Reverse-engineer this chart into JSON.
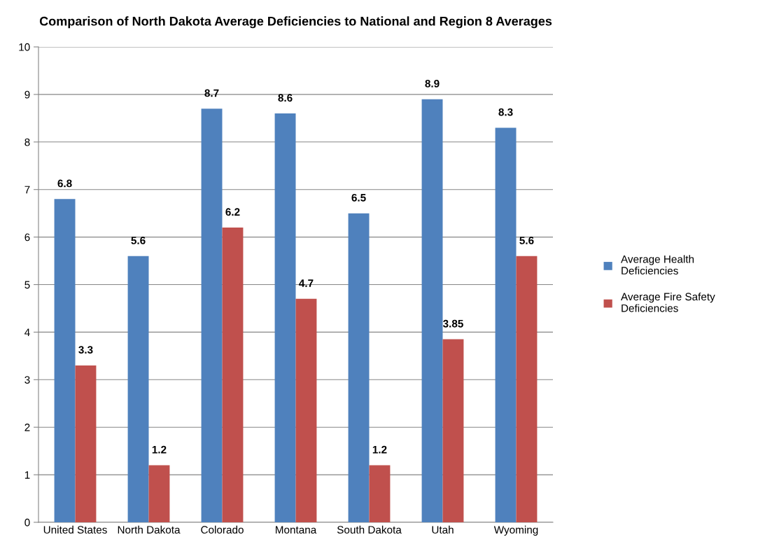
{
  "chart_data": {
    "type": "bar",
    "title": "Comparison of North Dakota Average Deficiencies to National and Region 8 Averages",
    "categories": [
      "United States",
      "North Dakota",
      "Colorado",
      "Montana",
      "South Dakota",
      "Utah",
      "Wyoming"
    ],
    "series": [
      {
        "name": "Average Health Deficiencies",
        "color": "#4f81bd",
        "values": [
          6.8,
          5.6,
          8.7,
          8.6,
          6.5,
          8.9,
          8.3
        ]
      },
      {
        "name": "Average Fire Safety Deficiencies",
        "color": "#c0504d",
        "values": [
          3.3,
          1.2,
          6.2,
          4.7,
          1.2,
          3.85,
          5.6
        ]
      }
    ],
    "ylim": [
      0,
      10
    ],
    "yticks": [
      0,
      1,
      2,
      3,
      4,
      5,
      6,
      7,
      8,
      9,
      10
    ],
    "grid": "y",
    "legend": "right",
    "data_labels": true
  }
}
